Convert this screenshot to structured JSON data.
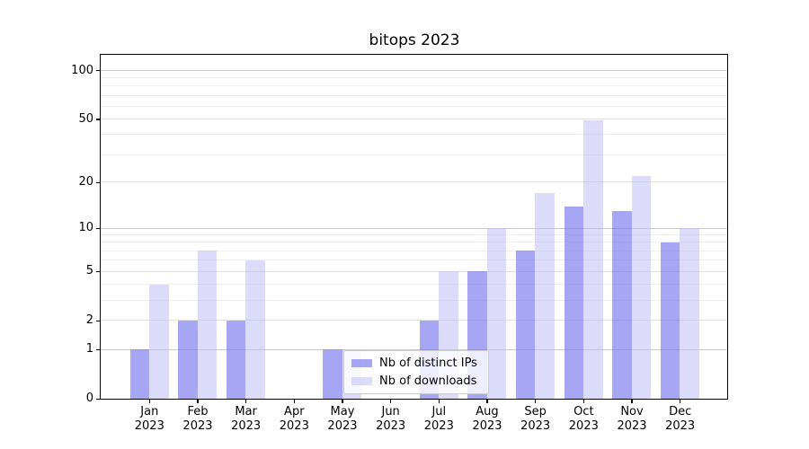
{
  "chart_data": {
    "type": "bar",
    "title": "bitops 2023",
    "categories": [
      "Jan 2023",
      "Feb 2023",
      "Mar 2023",
      "Apr 2023",
      "May 2023",
      "Jun 2023",
      "Jul 2023",
      "Aug 2023",
      "Sep 2023",
      "Oct 2023",
      "Nov 2023",
      "Dec 2023"
    ],
    "series": [
      {
        "name": "Nb of distinct IPs",
        "color": "rgba(118,118,238,0.65)",
        "values": [
          1,
          2,
          2,
          0,
          1,
          0,
          2,
          5,
          7,
          14,
          13,
          8
        ]
      },
      {
        "name": "Nb of downloads",
        "color": "rgba(191,191,246,0.55)",
        "values": [
          4,
          7,
          6,
          0,
          1,
          0,
          5,
          10,
          17,
          49,
          22,
          10
        ]
      }
    ],
    "xlabel": "",
    "ylabel": "",
    "yscale": "log1p",
    "ylim": [
      0,
      125
    ],
    "yticks": [
      0,
      1,
      2,
      5,
      10,
      20,
      50,
      100
    ],
    "grid": {
      "decade_lines": [
        1,
        10,
        100
      ],
      "mid_lines": [
        2,
        5,
        20,
        50
      ],
      "minor_lines": [
        3,
        4,
        6,
        7,
        8,
        9,
        30,
        40,
        60,
        70,
        80,
        90
      ],
      "decade_color": "#c9c9c9",
      "mid_color": "#e3e3e3",
      "minor_color": "#efefef"
    },
    "legend_position": "lower center",
    "background": "#ffffff",
    "text_color": "#000000",
    "axis_color": "#000000"
  }
}
